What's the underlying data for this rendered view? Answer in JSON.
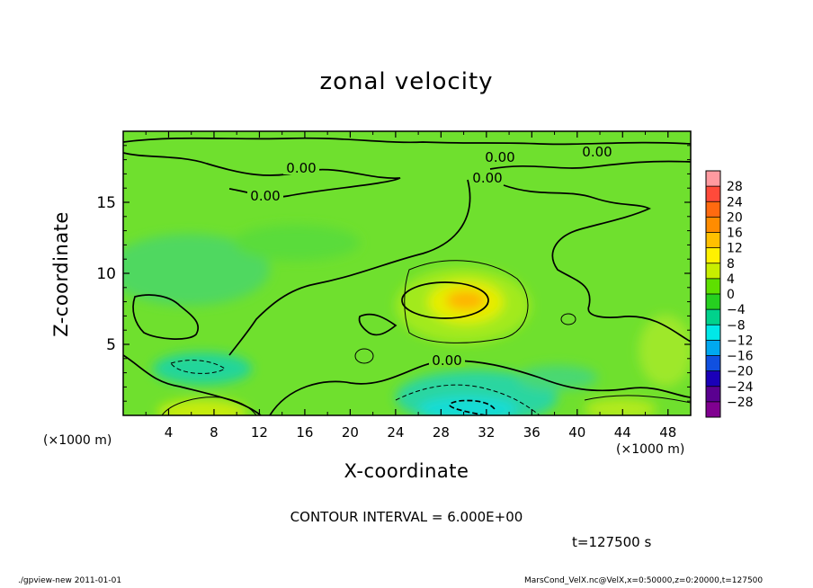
{
  "chart_data": {
    "type": "heatmap",
    "title": "zonal velocity",
    "xlabel": "X-coordinate",
    "ylabel": "Z-coordinate",
    "x_unit_left": "(×1000 m)",
    "x_unit_right": "(×1000 m)",
    "x_ticks": [
      "4",
      "8",
      "12",
      "16",
      "20",
      "24",
      "28",
      "32",
      "36",
      "40",
      "44",
      "48"
    ],
    "y_ticks": [
      "5",
      "10",
      "15"
    ],
    "xlim": [
      0,
      50
    ],
    "ylim": [
      0,
      20
    ],
    "contour_labels": [
      "0.00",
      "0.00",
      "0.00",
      "0.00",
      "0.00",
      "0.00"
    ],
    "colorbar_labels": [
      "28",
      "24",
      "20",
      "16",
      "12",
      "8",
      "4",
      "0",
      "−4",
      "−8",
      "−12",
      "−16",
      "−20",
      "−24",
      "−28"
    ],
    "colorbar_colors": [
      "#ff9aa0",
      "#ff4a3a",
      "#ff6a10",
      "#ff8c00",
      "#ffc000",
      "#fff100",
      "#c8ee00",
      "#5ee000",
      "#26d020",
      "#00d28c",
      "#00e8e8",
      "#00a8f0",
      "#1050e0",
      "#1a00b8",
      "#5a0090",
      "#800090"
    ],
    "contour_interval": "CONTOUR INTERVAL = 6.000E+00",
    "time": "t=127500 s",
    "samples": [
      {
        "x": 30,
        "y": 8,
        "value": 12
      },
      {
        "x": 29,
        "y": 0.5,
        "value": -8
      },
      {
        "x": 7,
        "y": 3,
        "value": -4
      },
      {
        "x": 8,
        "y": 0.5,
        "value": 6
      },
      {
        "x": 42,
        "y": 0.5,
        "value": 4
      },
      {
        "x": 45,
        "y": 5,
        "value": 4
      }
    ]
  },
  "footer": {
    "left": "./gpview-new   2011-01-01",
    "right": "MarsCond_VelX.nc@VelX,x=0:50000,z=0:20000,t=127500"
  }
}
